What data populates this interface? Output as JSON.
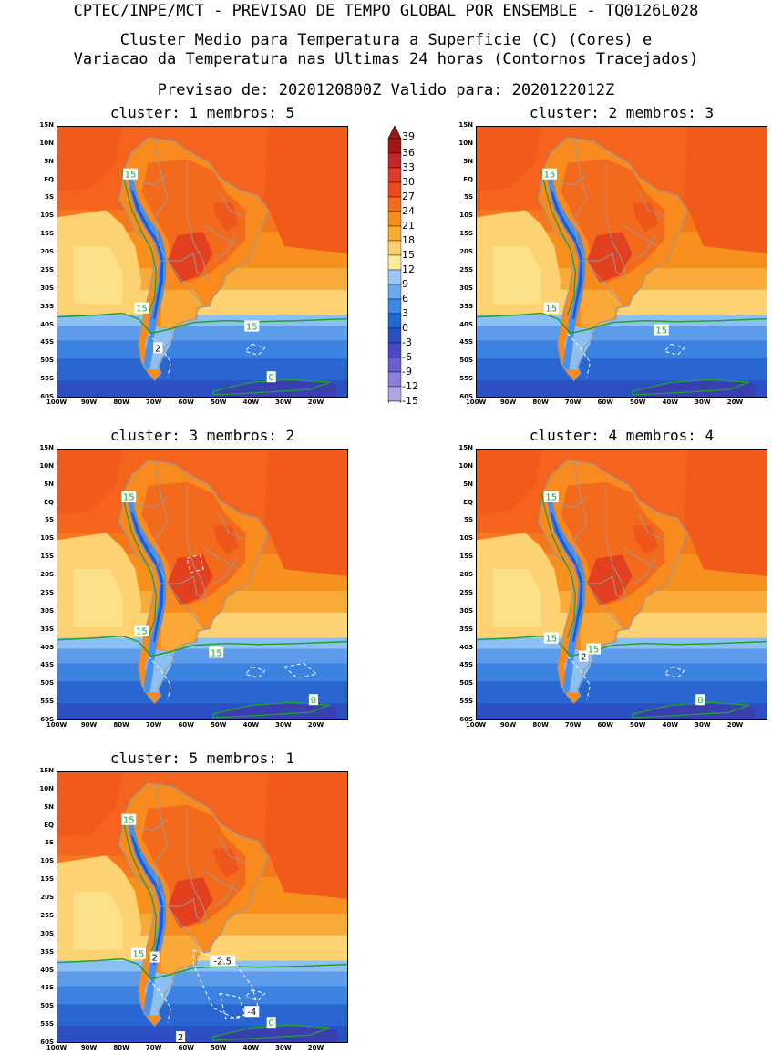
{
  "header": {
    "line1": "CPTEC/INPE/MCT - PREVISAO DE TEMPO GLOBAL POR ENSEMBLE - TQ0126L028",
    "line2": "Cluster Medio para Temperatura a Superficie (C) (Cores) e",
    "line3": "Variacao da Temperatura nas Ultimas 24 horas (Contornos Tracejados)",
    "line4": "Previsao de: 2020120800Z   Valido para: 2020122012Z"
  },
  "panels": [
    {
      "title": "cluster: 1  membros: 5",
      "labels": [
        {
          "text": "15",
          "lon": -77.5,
          "lat": 2
        },
        {
          "text": "15",
          "lon": -74,
          "lat": -35
        },
        {
          "text": "15",
          "lon": -40,
          "lat": -40
        },
        {
          "text": "2",
          "lon": -69,
          "lat": -46
        },
        {
          "text": "0",
          "lon": -34,
          "lat": -54
        }
      ]
    },
    {
      "title": "cluster: 2  membros: 3",
      "labels": [
        {
          "text": "15",
          "lon": -77.5,
          "lat": 2
        },
        {
          "text": "15",
          "lon": -77,
          "lat": -35
        },
        {
          "text": "15",
          "lon": -43,
          "lat": -41
        }
      ]
    },
    {
      "title": "cluster: 3  membros: 2",
      "labels": [
        {
          "text": "15",
          "lon": -78,
          "lat": 2
        },
        {
          "text": "15",
          "lon": -74,
          "lat": -35
        },
        {
          "text": "15",
          "lon": -51,
          "lat": -41
        },
        {
          "text": "0",
          "lon": -21,
          "lat": -54
        }
      ]
    },
    {
      "title": "cluster: 4  membros: 4",
      "labels": [
        {
          "text": "15",
          "lon": -77,
          "lat": 2
        },
        {
          "text": "15",
          "lon": -77,
          "lat": -37
        },
        {
          "text": "15",
          "lon": -64,
          "lat": -40
        },
        {
          "text": "2",
          "lon": -67,
          "lat": -42
        },
        {
          "text": "0",
          "lon": -31,
          "lat": -54
        }
      ]
    },
    {
      "title": "cluster: 5  membros: 1",
      "labels": [
        {
          "text": "15",
          "lon": -78,
          "lat": 2
        },
        {
          "text": "15",
          "lon": -75,
          "lat": -35
        },
        {
          "text": "2",
          "lon": -70,
          "lat": -36
        },
        {
          "text": "-2.5",
          "lon": -49,
          "lat": -37
        },
        {
          "text": "-4",
          "lon": -40,
          "lat": -51
        },
        {
          "text": "0",
          "lon": -34,
          "lat": -54
        },
        {
          "text": "2",
          "lon": -62,
          "lat": -58
        }
      ]
    }
  ],
  "axes": {
    "lat_labels": [
      "15N",
      "10N",
      "5N",
      "EQ",
      "5S",
      "10S",
      "15S",
      "20S",
      "25S",
      "30S",
      "35S",
      "40S",
      "45S",
      "50S",
      "55S",
      "60S"
    ],
    "lat_values": [
      15,
      10,
      5,
      0,
      -5,
      -10,
      -15,
      -20,
      -25,
      -30,
      -35,
      -40,
      -45,
      -50,
      -55,
      -60
    ],
    "lon_labels": [
      "100W",
      "90W",
      "80W",
      "70W",
      "60W",
      "50W",
      "40W",
      "30W",
      "20W"
    ],
    "lon_values": [
      -100,
      -90,
      -80,
      -70,
      -60,
      -50,
      -40,
      -30,
      -20
    ],
    "lon_range": [
      -100,
      -10
    ],
    "lat_range": [
      -60,
      15
    ]
  },
  "colorbar": {
    "labels": [
      "39",
      "36",
      "33",
      "30",
      "27",
      "24",
      "21",
      "18",
      "15",
      "12",
      "9",
      "6",
      "3",
      "0",
      "-3",
      "-6",
      "-9",
      "-12",
      "-15"
    ],
    "colors": [
      "#a0181a",
      "#c0282a",
      "#dc3a2a",
      "#ec4a1c",
      "#f46a1c",
      "#f88c1c",
      "#faac2c",
      "#fcd06c",
      "#fcec9c",
      "#9cc8f4",
      "#6ca8ec",
      "#3c88e4",
      "#2468d4",
      "#2850c0",
      "#4848c8",
      "#6860d0",
      "#8c80dc",
      "#b0a4e8",
      "#d8d0f4"
    ],
    "top_color": "#a0181a",
    "bottom_color": "#ffffff"
  },
  "colors": {
    "land_border": "#9a9a9a",
    "contour_green": "#22a033",
    "contour_white": "#ffffff"
  }
}
